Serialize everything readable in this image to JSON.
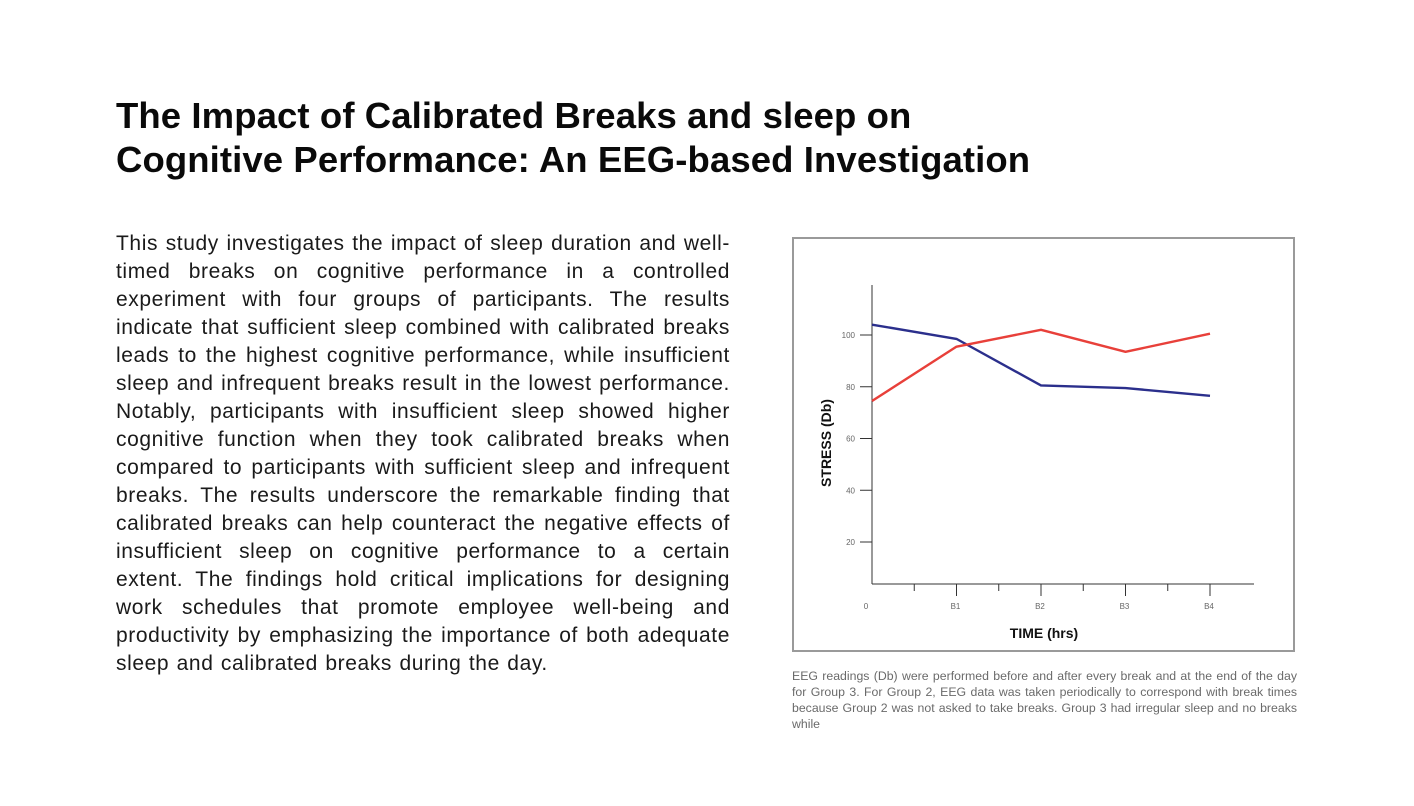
{
  "page": {
    "title_line1": "The Impact of Calibrated Breaks and sleep on",
    "title_line2": "Cognitive Performance: An EEG-based Investigation",
    "body": "This study investigates the impact of sleep duration and well-timed breaks on cognitive performance in a controlled experiment with four groups of participants. The results indicate that sufficient sleep combined with calibrated breaks leads to the highest cognitive performance, while insufficient sleep and infrequent breaks result in the lowest performance. Notably, participants with insufficient sleep showed higher cognitive function when they took calibrated breaks when compared to participants with sufficient sleep and infrequent breaks. The results underscore the remarkable finding that calibrated breaks can help counteract the negative effects of insufficient sleep on cognitive performance to a certain extent. The findings hold critical implications for designing work schedules that promote employee well-being and productivity by emphasizing the importance of both adequate sleep and calibrated breaks during the day.",
    "caption": "EEG readings (Db) were performed before and after every break and at the end of the day for Group 3. For Group 2, EEG data was taken periodically to correspond with break times because Group 2 was not asked to take breaks. Group 3 had irregular sleep and no breaks while"
  },
  "chart_data": {
    "type": "line",
    "title": "",
    "xlabel": "TIME (hrs)",
    "ylabel": "STRESS (Db)",
    "categories": [
      "0",
      "B1",
      "B2",
      "B3",
      "B4"
    ],
    "yticks": [
      20,
      40,
      60,
      80,
      100
    ],
    "ylim": [
      0,
      115
    ],
    "grid": false,
    "legend": "none",
    "series": [
      {
        "color": "#2b2f8c",
        "values": [
          104,
          98.5,
          80.5,
          79.5,
          76.5
        ]
      },
      {
        "color": "#e8403a",
        "values": [
          74.5,
          95.5,
          102,
          93.5,
          100.5
        ]
      }
    ]
  }
}
